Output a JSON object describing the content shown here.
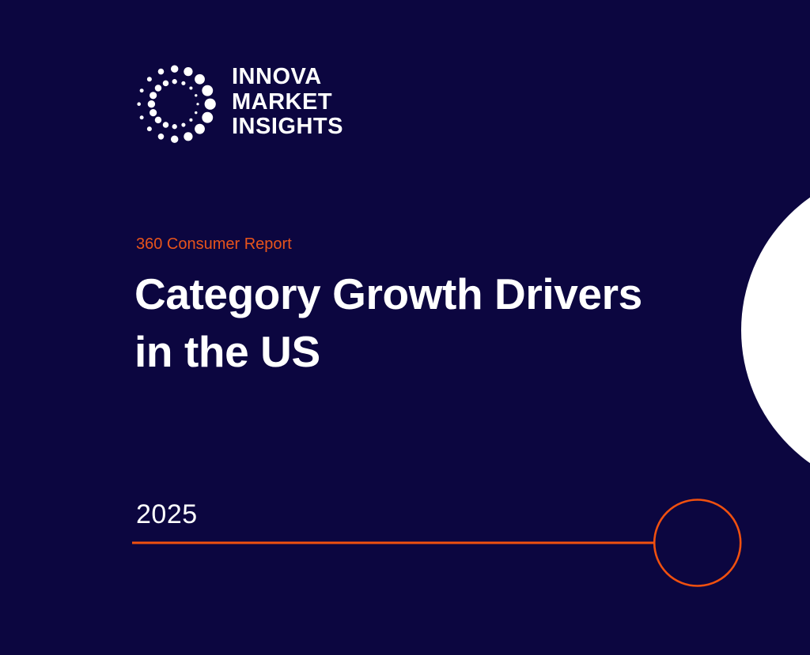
{
  "brand": {
    "logo_lines": [
      "INNOVA",
      "MARKET",
      "INSIGHTS"
    ],
    "logo_icon": "dotted-circle-logo-icon"
  },
  "cover": {
    "subtitle": "360 Consumer Report",
    "title_lines": [
      "Category Growth Drivers",
      "in the US"
    ],
    "year": "2025"
  },
  "colors": {
    "background": "#0c0640",
    "accent": "#f0500f",
    "subtitle": "#e8541b",
    "text": "#ffffff",
    "circle_fill": "#ffffff"
  }
}
